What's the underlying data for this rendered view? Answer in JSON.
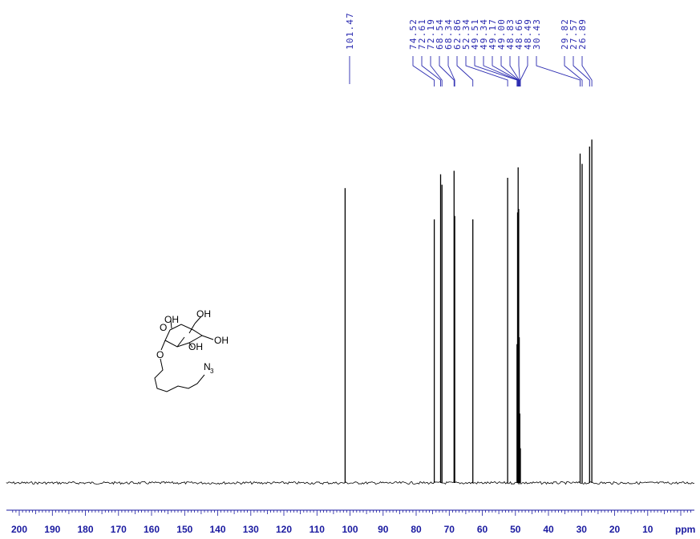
{
  "chart_data": {
    "type": "line",
    "xlabel": "ppm",
    "xlim": [
      200,
      -3
    ],
    "x_reversed": true,
    "x_ticks": [
      200,
      190,
      180,
      170,
      160,
      150,
      140,
      130,
      120,
      110,
      100,
      90,
      80,
      70,
      60,
      50,
      40,
      30,
      20,
      10
    ],
    "peaks": [
      {
        "ppm": 101.47,
        "height": 0.85
      },
      {
        "ppm": 74.52,
        "height": 0.76
      },
      {
        "ppm": 72.61,
        "height": 0.89
      },
      {
        "ppm": 72.19,
        "height": 0.86
      },
      {
        "ppm": 68.54,
        "height": 0.9
      },
      {
        "ppm": 68.34,
        "height": 0.77
      },
      {
        "ppm": 62.86,
        "height": 0.76
      },
      {
        "ppm": 52.34,
        "height": 0.88
      },
      {
        "ppm": 49.51,
        "height": 0.4
      },
      {
        "ppm": 49.34,
        "height": 0.78
      },
      {
        "ppm": 49.17,
        "height": 0.91
      },
      {
        "ppm": 49.0,
        "height": 0.79
      },
      {
        "ppm": 48.83,
        "height": 0.42
      },
      {
        "ppm": 48.66,
        "height": 0.2
      },
      {
        "ppm": 48.49,
        "height": 0.1
      },
      {
        "ppm": 30.43,
        "height": 0.95
      },
      {
        "ppm": 29.82,
        "height": 0.92
      },
      {
        "ppm": 27.57,
        "height": 0.97
      },
      {
        "ppm": 26.89,
        "height": 0.99
      }
    ],
    "peak_labels": [
      "101.47",
      "74.52",
      "72.61",
      "72.19",
      "68.54",
      "68.34",
      "62.86",
      "52.34",
      "49.51",
      "49.34",
      "49.17",
      "49.00",
      "48.83",
      "48.66",
      "48.49",
      "30.43",
      "29.82",
      "27.57",
      "26.89"
    ]
  },
  "molecule": {
    "labels": {
      "oh_top_left": "OH",
      "oh_top_right": "OH",
      "oh_right": "OH",
      "oh_bottom": "OH",
      "ring_o": "O",
      "linker_o": "O",
      "azide": "N",
      "azide_sub": "3"
    }
  },
  "colors": {
    "spectrum": "#000000",
    "labels": "#2a2ab0",
    "axis": "#1a1aa0"
  }
}
